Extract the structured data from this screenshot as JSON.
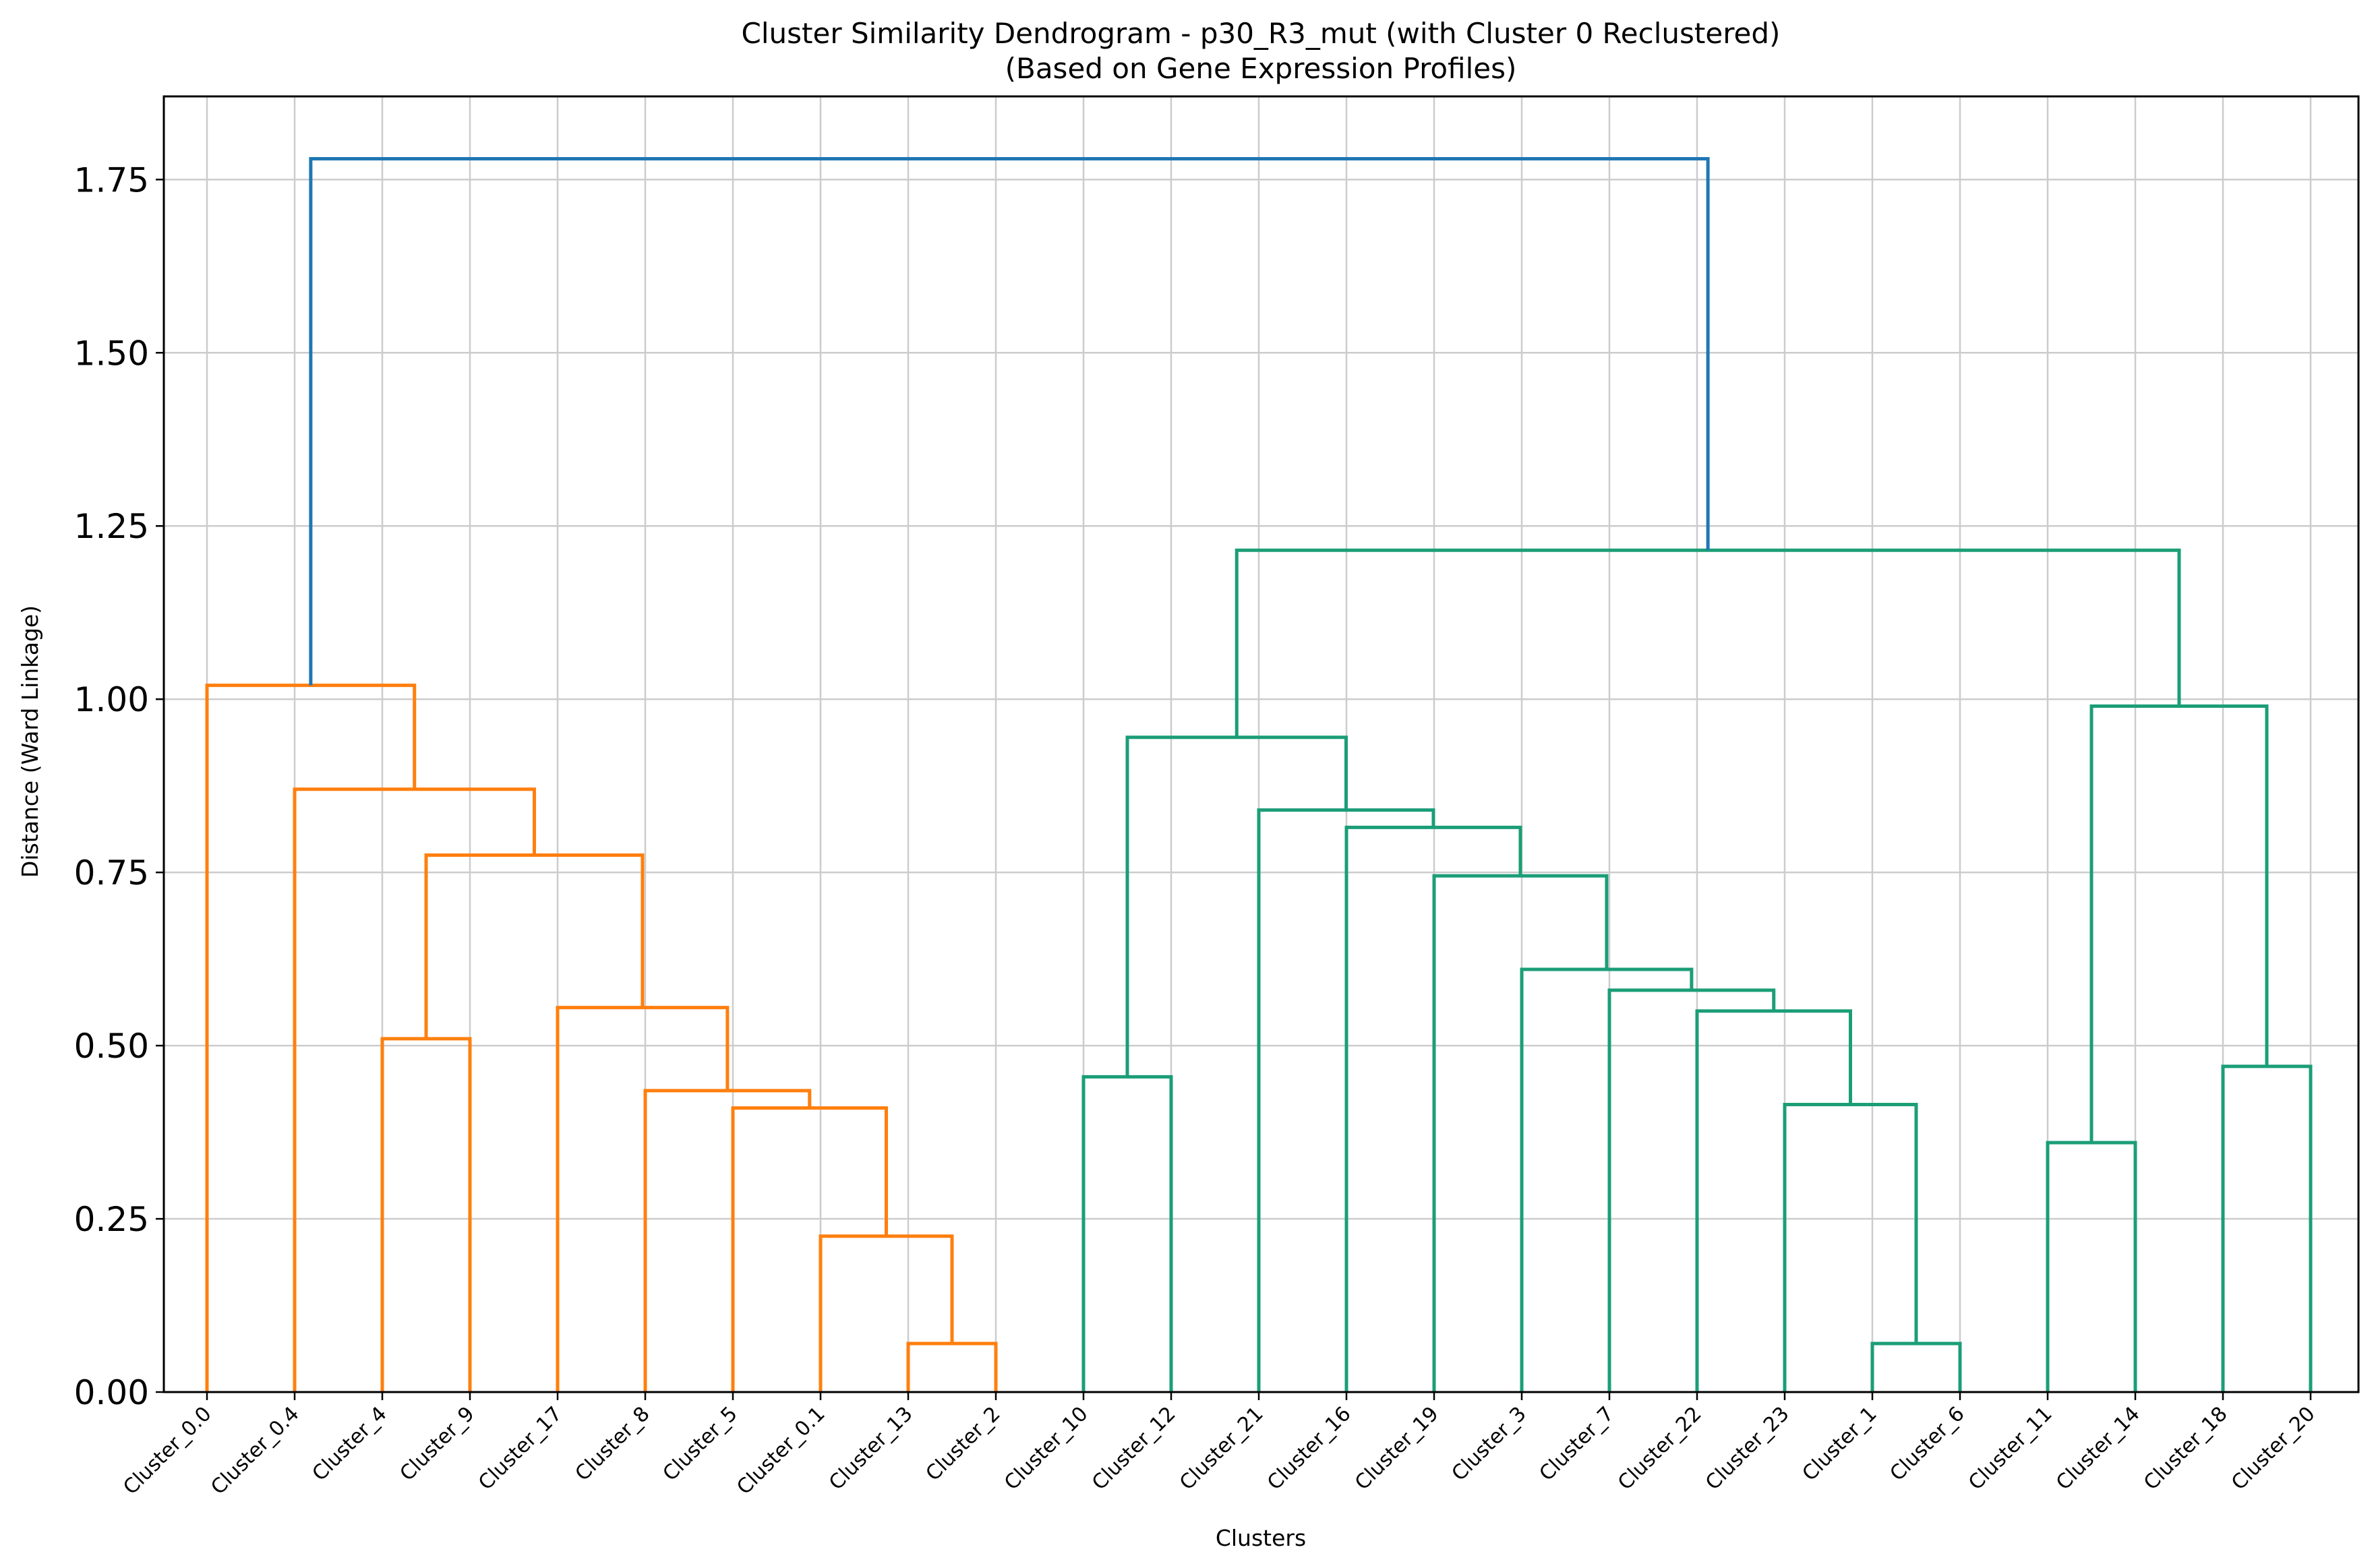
{
  "chart_data": {
    "type": "dendrogram",
    "title": "Cluster Similarity Dendrogram - p30_R3_mut (with Cluster 0 Reclustered)",
    "subtitle": "(Based on Gene Expression Profiles)",
    "xlabel": "Clusters",
    "ylabel": "Distance (Ward Linkage)",
    "ylim": [
      0,
      1.87
    ],
    "yticks": [
      "0.00",
      "0.25",
      "0.50",
      "0.75",
      "1.00",
      "1.25",
      "1.50",
      "1.75"
    ],
    "grid": true,
    "leaves": [
      "Cluster_0.0",
      "Cluster_0.4",
      "Cluster_4",
      "Cluster_9",
      "Cluster_17",
      "Cluster_8",
      "Cluster_5",
      "Cluster_0.1",
      "Cluster_13",
      "Cluster_2",
      "Cluster_10",
      "Cluster_12",
      "Cluster_21",
      "Cluster_16",
      "Cluster_19",
      "Cluster_3",
      "Cluster_7",
      "Cluster_22",
      "Cluster_23",
      "Cluster_1",
      "Cluster_6",
      "Cluster_11",
      "Cluster_14",
      "Cluster_18",
      "Cluster_20"
    ],
    "colors": {
      "orange": "#ff7f0e",
      "green": "#1b9e77",
      "blue": "#1f77b4"
    },
    "merges": [
      {
        "a": "L8",
        "b": "L9",
        "height": 0.07,
        "color": "orange"
      },
      {
        "a": "L7",
        "b": "M0",
        "height": 0.225,
        "color": "orange"
      },
      {
        "a": "L6",
        "b": "M1",
        "height": 0.41,
        "color": "orange"
      },
      {
        "a": "L5",
        "b": "M2",
        "height": 0.435,
        "color": "orange"
      },
      {
        "a": "L4",
        "b": "M3",
        "height": 0.555,
        "color": "orange"
      },
      {
        "a": "L2",
        "b": "L3",
        "height": 0.51,
        "color": "orange"
      },
      {
        "a": "M5",
        "b": "M4",
        "height": 0.775,
        "color": "orange"
      },
      {
        "a": "L1",
        "b": "M6",
        "height": 0.87,
        "color": "orange"
      },
      {
        "a": "L0",
        "b": "M7",
        "height": 1.02,
        "color": "orange"
      },
      {
        "a": "L19",
        "b": "L20",
        "height": 0.07,
        "color": "green"
      },
      {
        "a": "L18",
        "b": "M9",
        "height": 0.415,
        "color": "green"
      },
      {
        "a": "L17",
        "b": "M10",
        "height": 0.55,
        "color": "green"
      },
      {
        "a": "L16",
        "b": "M11",
        "height": 0.58,
        "color": "green"
      },
      {
        "a": "L15",
        "b": "M12",
        "height": 0.61,
        "color": "green"
      },
      {
        "a": "L14",
        "b": "M13",
        "height": 0.745,
        "color": "green"
      },
      {
        "a": "L13",
        "b": "M14",
        "height": 0.815,
        "color": "green"
      },
      {
        "a": "L12",
        "b": "M15",
        "height": 0.84,
        "color": "green"
      },
      {
        "a": "L10",
        "b": "L11",
        "height": 0.455,
        "color": "green"
      },
      {
        "a": "M17",
        "b": "M16",
        "height": 0.945,
        "color": "green"
      },
      {
        "a": "L21",
        "b": "L22",
        "height": 0.36,
        "color": "green"
      },
      {
        "a": "L23",
        "b": "L24",
        "height": 0.47,
        "color": "green"
      },
      {
        "a": "M19",
        "b": "M20",
        "height": 0.99,
        "color": "green"
      },
      {
        "a": "M18",
        "b": "M21",
        "height": 1.215,
        "color": "green"
      },
      {
        "a": "M8",
        "b": "M22",
        "height": 1.78,
        "color": "blue"
      }
    ]
  }
}
